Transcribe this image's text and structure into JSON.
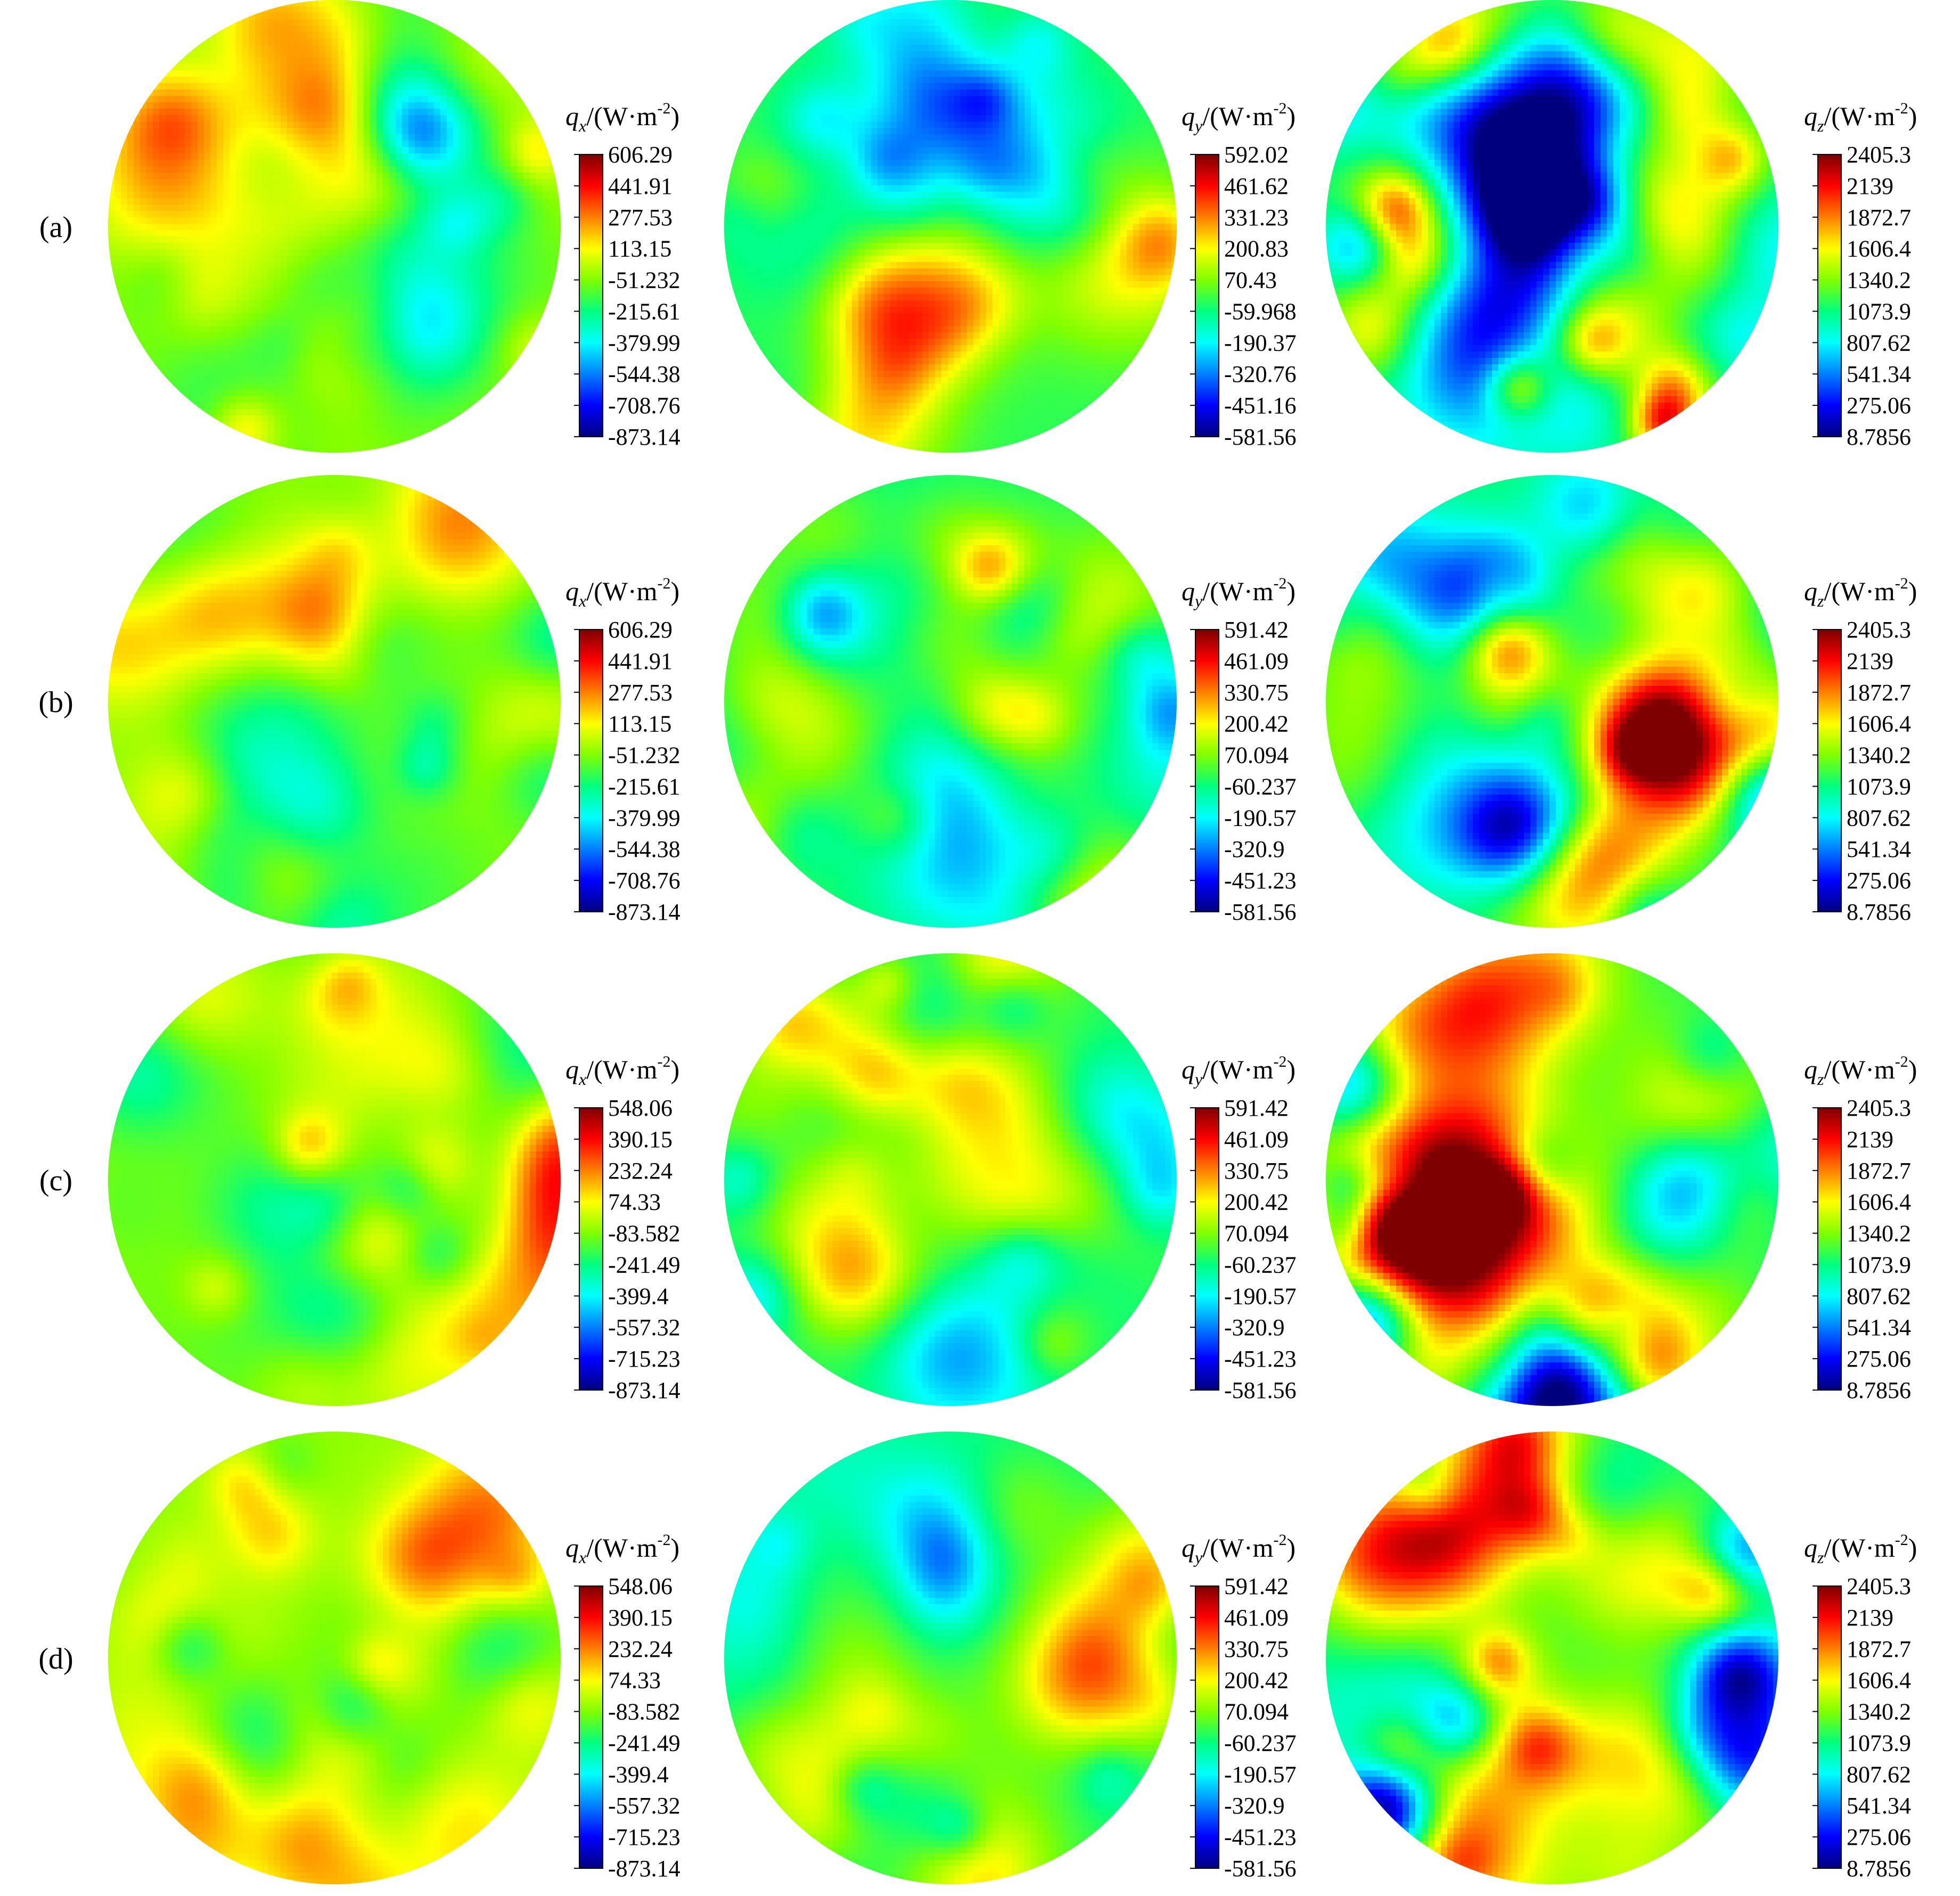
{
  "colormap": [
    "#00007f",
    "#0000ff",
    "#0080ff",
    "#00ffff",
    "#00ff80",
    "#80ff00",
    "#ffff00",
    "#ff8000",
    "#ff0000",
    "#7f0000"
  ],
  "axis_symbol": "q",
  "unit": "/(W·m",
  "unit_exponent": "-2",
  "unit_close": ")",
  "chart_data": [
    {
      "type": "heatmap",
      "row_label": "(a)",
      "subscript": "x",
      "colorbar_ticks": [
        "606.29",
        "441.91",
        "277.53",
        "113.15",
        "-51.232",
        "-215.61",
        "-379.99",
        "-544.38",
        "-708.76",
        "-873.14"
      ],
      "bias": 0.55,
      "contrast": 0.85
    },
    {
      "type": "heatmap",
      "row_label": "",
      "subscript": "y",
      "colorbar_ticks": [
        "592.02",
        "461.62",
        "331.23",
        "200.83",
        "70.43",
        "-59.968",
        "-190.37",
        "-320.76",
        "-451.16",
        "-581.56"
      ],
      "bias": 0.48,
      "contrast": 0.9
    },
    {
      "type": "heatmap",
      "row_label": "",
      "subscript": "z",
      "colorbar_ticks": [
        "2405.3",
        "2139",
        "1872.7",
        "1606.4",
        "1340.2",
        "1073.9",
        "807.62",
        "541.34",
        "275.06",
        "8.7856"
      ],
      "bias": 0.45,
      "contrast": 1.6
    },
    {
      "type": "heatmap",
      "row_label": "(b)",
      "subscript": "x",
      "colorbar_ticks": [
        "606.29",
        "441.91",
        "277.53",
        "113.15",
        "-51.232",
        "-215.61",
        "-379.99",
        "-544.38",
        "-708.76",
        "-873.14"
      ],
      "bias": 0.56,
      "contrast": 0.85
    },
    {
      "type": "heatmap",
      "row_label": "",
      "subscript": "y",
      "colorbar_ticks": [
        "591.42",
        "461.09",
        "330.75",
        "200.42",
        "70.094",
        "-60.237",
        "-190.57",
        "-320.9",
        "-451.23",
        "-581.56"
      ],
      "bias": 0.47,
      "contrast": 0.95
    },
    {
      "type": "heatmap",
      "row_label": "",
      "subscript": "z",
      "colorbar_ticks": [
        "2405.3",
        "2139",
        "1872.7",
        "1606.4",
        "1340.2",
        "1073.9",
        "807.62",
        "541.34",
        "275.06",
        "8.7856"
      ],
      "bias": 0.45,
      "contrast": 1.6
    },
    {
      "type": "heatmap",
      "row_label": "(c)",
      "subscript": "x",
      "colorbar_ticks": [
        "548.06",
        "390.15",
        "232.24",
        "74.33",
        "-83.582",
        "-241.49",
        "-399.4",
        "-557.32",
        "-715.23",
        "-873.14"
      ],
      "bias": 0.56,
      "contrast": 0.9
    },
    {
      "type": "heatmap",
      "row_label": "",
      "subscript": "y",
      "colorbar_ticks": [
        "591.42",
        "461.09",
        "330.75",
        "200.42",
        "70.094",
        "-60.237",
        "-190.57",
        "-320.9",
        "-451.23",
        "-581.56"
      ],
      "bias": 0.47,
      "contrast": 0.9
    },
    {
      "type": "heatmap",
      "row_label": "",
      "subscript": "z",
      "colorbar_ticks": [
        "2405.3",
        "2139",
        "1872.7",
        "1606.4",
        "1340.2",
        "1073.9",
        "807.62",
        "541.34",
        "275.06",
        "8.7856"
      ],
      "bias": 0.46,
      "contrast": 1.6
    },
    {
      "type": "heatmap",
      "row_label": "(d)",
      "subscript": "x",
      "colorbar_ticks": [
        "548.06",
        "390.15",
        "232.24",
        "74.33",
        "-83.582",
        "-241.49",
        "-399.4",
        "-557.32",
        "-715.23",
        "-873.14"
      ],
      "bias": 0.57,
      "contrast": 0.9
    },
    {
      "type": "heatmap",
      "row_label": "",
      "subscript": "y",
      "colorbar_ticks": [
        "591.42",
        "461.09",
        "330.75",
        "200.42",
        "70.094",
        "-60.237",
        "-190.57",
        "-320.9",
        "-451.23",
        "-581.56"
      ],
      "bias": 0.45,
      "contrast": 0.9
    },
    {
      "type": "heatmap",
      "row_label": "",
      "subscript": "z",
      "colorbar_ticks": [
        "2405.3",
        "2139",
        "1872.7",
        "1606.4",
        "1340.2",
        "1073.9",
        "807.62",
        "541.34",
        "275.06",
        "8.7856"
      ],
      "bias": 0.46,
      "contrast": 1.6
    }
  ]
}
